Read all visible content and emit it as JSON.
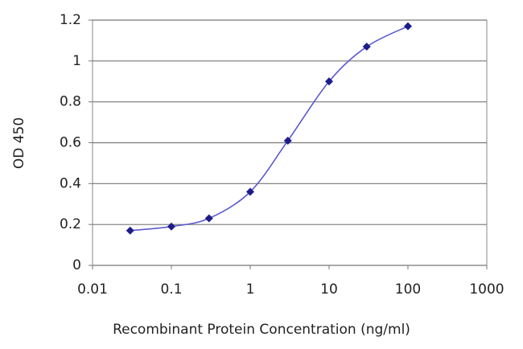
{
  "chart_data": {
    "type": "scatter",
    "x_label": "Recombinant Protein Concentration (ng/ml)",
    "y_label": "OD 450",
    "x": [
      0.03,
      0.1,
      0.3,
      1,
      3,
      10,
      30,
      100
    ],
    "values": [
      0.17,
      0.19,
      0.23,
      0.36,
      0.61,
      0.9,
      1.07,
      1.17
    ],
    "color": "#1c1c8a",
    "line_color": "#5a5ad0",
    "xscale": "log",
    "xlim": [
      0.01,
      1000
    ],
    "xticks": [
      0.01,
      0.1,
      1,
      10,
      100,
      1000
    ],
    "ylim": [
      0,
      1.2
    ],
    "yticks": [
      0,
      0.2,
      0.4,
      0.6,
      0.8,
      1,
      1.2
    ],
    "grid": true
  }
}
